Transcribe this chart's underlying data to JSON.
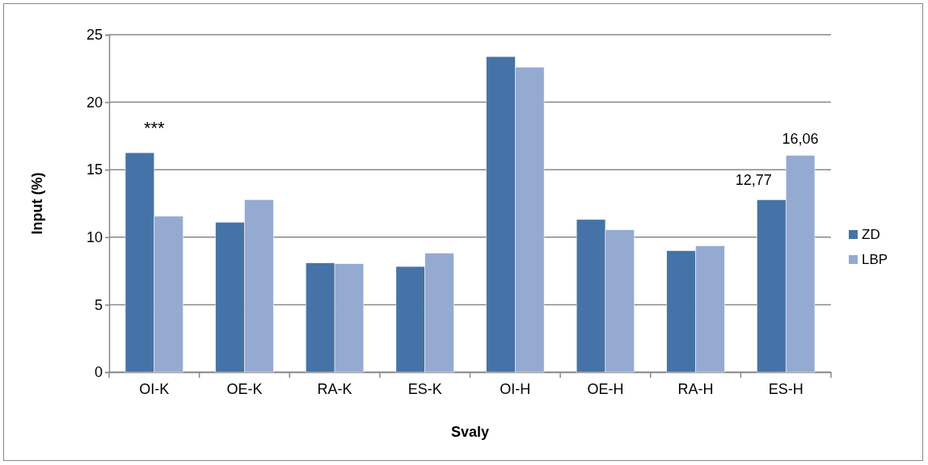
{
  "chart_data": {
    "type": "bar",
    "xlabel": "Svaly",
    "ylabel": "Input (%)",
    "categories": [
      "OI-K",
      "OE-K",
      "RA-K",
      "ES-K",
      "OI-H",
      "OE-H",
      "RA-H",
      "ES-H"
    ],
    "series": [
      {
        "name": "ZD",
        "color": "#4673a7",
        "values": [
          16.26,
          11.11,
          8.09,
          7.83,
          23.38,
          11.31,
          9.0,
          12.77
        ],
        "value_labels": [
          null,
          null,
          null,
          null,
          null,
          null,
          null,
          "12,77"
        ]
      },
      {
        "name": "LBP",
        "color": "#95aad1",
        "values": [
          11.55,
          12.78,
          8.03,
          8.81,
          22.6,
          10.54,
          9.36,
          16.06
        ],
        "value_labels": [
          null,
          null,
          null,
          null,
          null,
          null,
          null,
          "16,06"
        ]
      }
    ],
    "ylim": [
      0,
      25
    ],
    "yticks": [
      0,
      5,
      10,
      15,
      20,
      25
    ],
    "grid": "y",
    "legend": "right",
    "annotations": [
      "***"
    ]
  }
}
